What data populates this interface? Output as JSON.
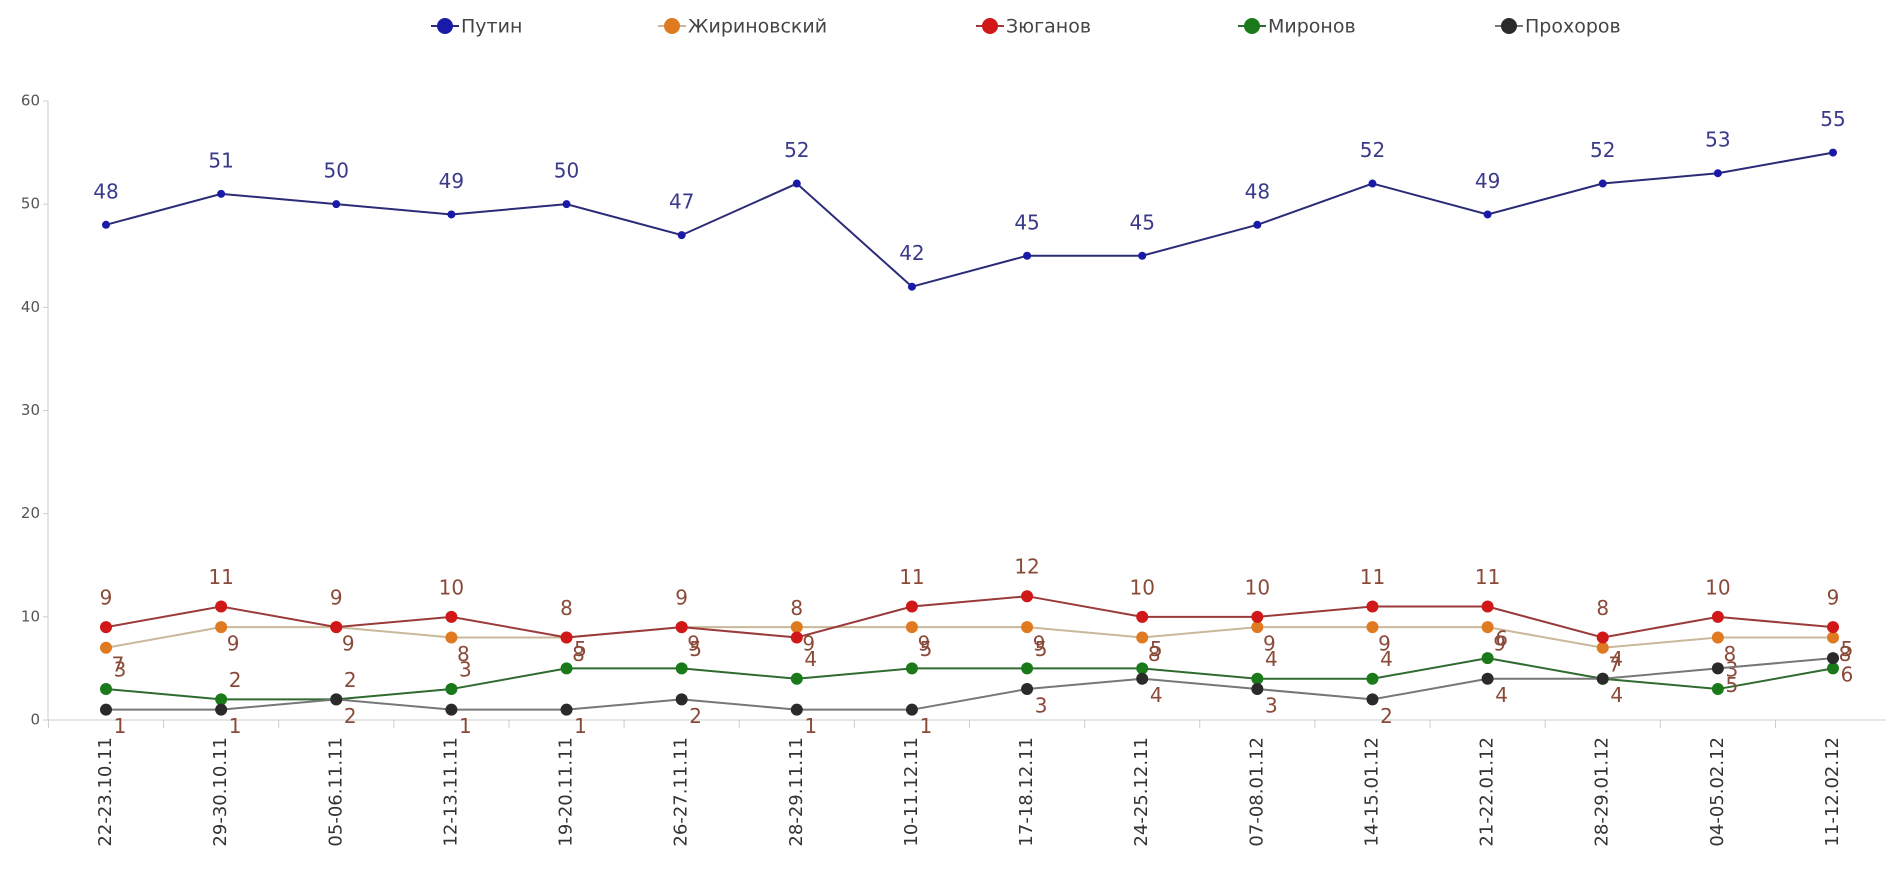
{
  "chart_data": {
    "type": "line",
    "categories": [
      "22-23.10.11",
      "29-30.10.11",
      "05-06.11.11",
      "12-13.11.11",
      "19-20.11.11",
      "26-27.11.11",
      "28-29.11.11",
      "10-11.12.11",
      "17-18.12.11",
      "24-25.12.11",
      "07-08.01.12",
      "14-15.01.12",
      "21-22.01.12",
      "28-29.01.12",
      "04-05.02.12",
      "11-12.02.12"
    ],
    "series": [
      {
        "name": "Путин",
        "color": "#1a1aa8",
        "line_color": "#2b2b78",
        "values": [
          48,
          51,
          50,
          49,
          50,
          47,
          52,
          42,
          45,
          45,
          48,
          52,
          49,
          52,
          53,
          55
        ]
      },
      {
        "name": "Жириновский",
        "color": "#e07a20",
        "line_color": "#c9b89a",
        "values": [
          7,
          9,
          9,
          8,
          8,
          9,
          9,
          9,
          9,
          8,
          9,
          9,
          9,
          7,
          8,
          8
        ]
      },
      {
        "name": "Зюганов",
        "color": "#d01818",
        "line_color": "#9a3a3a",
        "values": [
          9,
          11,
          9,
          10,
          8,
          9,
          8,
          11,
          12,
          10,
          10,
          11,
          11,
          8,
          10,
          9
        ]
      },
      {
        "name": "Миронов",
        "color": "#1a7a1a",
        "line_color": "#2f6a2f",
        "values": [
          3,
          2,
          2,
          3,
          5,
          5,
          4,
          5,
          5,
          5,
          4,
          4,
          6,
          4,
          3,
          5
        ]
      },
      {
        "name": "Прохоров",
        "color": "#2a2a2a",
        "line_color": "#777777",
        "values": [
          1,
          1,
          2,
          1,
          1,
          2,
          1,
          1,
          3,
          4,
          3,
          2,
          4,
          4,
          5,
          6
        ]
      }
    ],
    "ylim": [
      0,
      60
    ],
    "yticks": [
      0,
      10,
      20,
      30,
      40,
      50,
      60
    ],
    "grid": false,
    "legend": "top"
  }
}
